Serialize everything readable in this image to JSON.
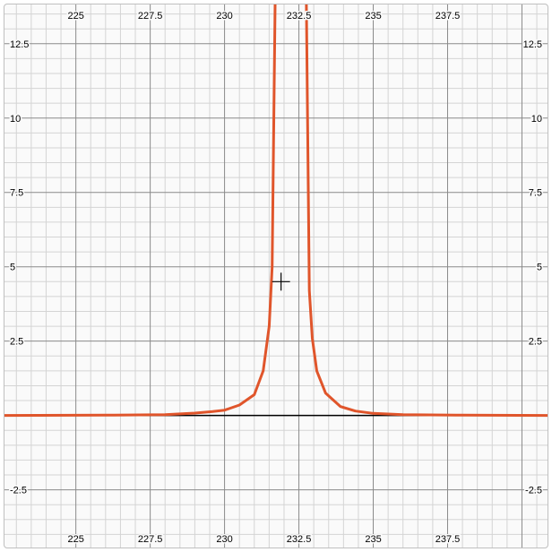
{
  "chart_data": {
    "type": "line",
    "title": "",
    "xlabel": "",
    "ylabel": "",
    "xlim": [
      222.6,
      240.86
    ],
    "ylim": [
      -4.44,
      13.82
    ],
    "x_ticks": [
      225,
      227.5,
      230,
      232.5,
      235,
      237.5
    ],
    "x_tick_labels": [
      "225",
      "227.5",
      "230",
      "232.5",
      "235",
      "237.5"
    ],
    "y_ticks": [
      12.5,
      10,
      7.5,
      5,
      2.5,
      -2.5
    ],
    "y_tick_labels": [
      "12.5",
      "10",
      "7.5",
      "5",
      "2.5",
      "-2.5"
    ],
    "minor_grid_step": 0.5,
    "major_grid_step": 2.5,
    "grid": true,
    "series": [
      {
        "color": "#e0552b",
        "peak_x": 232.2,
        "x": [
          222.6,
          226.0,
          228.0,
          229.0,
          229.6,
          230.0,
          230.5,
          231.0,
          231.3,
          231.5,
          231.6,
          231.7,
          232.75,
          232.85,
          232.95,
          233.1,
          233.4,
          233.9,
          234.4,
          235.0,
          236.0,
          238.0,
          240.86
        ],
        "y": [
          0.0,
          0.01,
          0.03,
          0.08,
          0.13,
          0.18,
          0.35,
          0.7,
          1.5,
          3.0,
          5.0,
          13.82,
          13.82,
          4.2,
          2.6,
          1.5,
          0.75,
          0.3,
          0.15,
          0.07,
          0.03,
          0.01,
          0.0
        ]
      }
    ],
    "cursor": {
      "x": 231.9,
      "y": 4.5
    }
  }
}
